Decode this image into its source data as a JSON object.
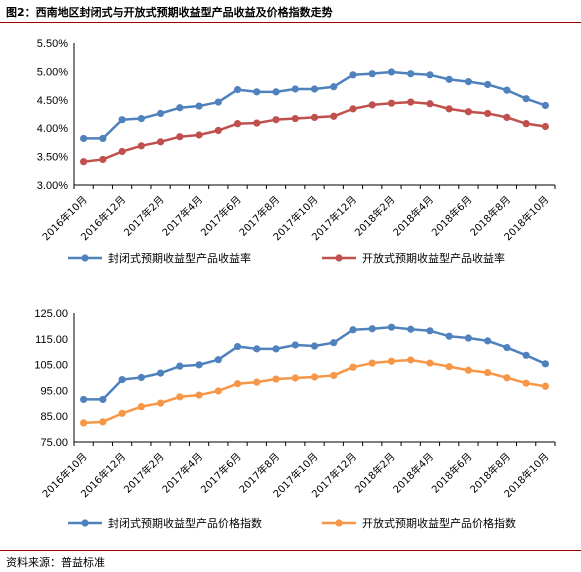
{
  "figure_title": "图2：西南地区封闭式与开放式预期收益型产品收益及价格指数走势",
  "source": "资料来源：普益标准",
  "chart_data": [
    {
      "type": "line",
      "categories": [
        "2016年10月",
        "2016年11月",
        "2016年12月",
        "2017年1月",
        "2017年2月",
        "2017年3月",
        "2017年4月",
        "2017年5月",
        "2017年6月",
        "2017年7月",
        "2017年8月",
        "2017年9月",
        "2017年10月",
        "2017年11月",
        "2017年12月",
        "2018年1月",
        "2018年2月",
        "2018年3月",
        "2018年4月",
        "2018年5月",
        "2018年6月",
        "2018年7月",
        "2018年8月",
        "2018年9月",
        "2018年10月"
      ],
      "xtick_labels": [
        "2016年10月",
        "2016年12月",
        "2017年2月",
        "2017年4月",
        "2017年6月",
        "2017年8月",
        "2017年10月",
        "2017年12月",
        "2018年2月",
        "2018年4月",
        "2018年6月",
        "2018年8月",
        "2018年10月"
      ],
      "yticks": [
        "3.00%",
        "3.50%",
        "4.00%",
        "4.50%",
        "5.00%",
        "5.50%"
      ],
      "ylim": [
        3.0,
        5.5
      ],
      "series": [
        {
          "name": "封闭式预期收益型产品收益率",
          "color": "#4f81bd",
          "values": [
            3.82,
            3.82,
            4.15,
            4.17,
            4.26,
            4.36,
            4.39,
            4.46,
            4.68,
            4.64,
            4.64,
            4.69,
            4.69,
            4.73,
            4.94,
            4.96,
            4.99,
            4.96,
            4.94,
            4.86,
            4.82,
            4.77,
            4.67,
            4.52,
            4.4
          ]
        },
        {
          "name": "开放式预期收益型产品收益率",
          "color": "#c0504d",
          "values": [
            3.41,
            3.45,
            3.59,
            3.69,
            3.76,
            3.85,
            3.88,
            3.96,
            4.08,
            4.09,
            4.15,
            4.17,
            4.19,
            4.21,
            4.34,
            4.41,
            4.44,
            4.46,
            4.43,
            4.34,
            4.29,
            4.26,
            4.19,
            4.08,
            4.03
          ]
        }
      ]
    },
    {
      "type": "line",
      "categories": [
        "2016年10月",
        "2016年11月",
        "2016年12月",
        "2017年1月",
        "2017年2月",
        "2017年3月",
        "2017年4月",
        "2017年5月",
        "2017年6月",
        "2017年7月",
        "2017年8月",
        "2017年9月",
        "2017年10月",
        "2017年11月",
        "2017年12月",
        "2018年1月",
        "2018年2月",
        "2018年3月",
        "2018年4月",
        "2018年5月",
        "2018年6月",
        "2018年7月",
        "2018年8月",
        "2018年9月",
        "2018年10月"
      ],
      "xtick_labels": [
        "2016年10月",
        "2016年12月",
        "2017年2月",
        "2017年4月",
        "2017年6月",
        "2017年8月",
        "2017年10月",
        "2017年12月",
        "2018年2月",
        "2018年4月",
        "2018年6月",
        "2018年8月",
        "2018年10月"
      ],
      "yticks": [
        "75.00",
        "85.00",
        "95.00",
        "105.00",
        "115.00",
        "125.00"
      ],
      "ylim": [
        75,
        125
      ],
      "series": [
        {
          "name": "封闭式预期收益型产品价格指数",
          "color": "#4f81bd",
          "values": [
            91.5,
            91.5,
            99.2,
            100.0,
            101.7,
            104.4,
            104.9,
            106.9,
            112.0,
            111.1,
            111.1,
            112.6,
            112.2,
            113.5,
            118.5,
            118.9,
            119.5,
            118.7,
            118.1,
            116.0,
            115.3,
            114.2,
            111.6,
            108.6,
            105.3
          ]
        },
        {
          "name": "开放式预期收益型产品价格指数",
          "color": "#f79646",
          "values": [
            82.4,
            82.8,
            86.1,
            88.7,
            90.1,
            92.5,
            93.2,
            94.8,
            97.6,
            98.2,
            99.4,
            99.8,
            100.2,
            100.8,
            104.0,
            105.6,
            106.3,
            106.8,
            105.6,
            104.2,
            102.8,
            101.9,
            99.9,
            97.8,
            96.6
          ]
        }
      ]
    }
  ]
}
